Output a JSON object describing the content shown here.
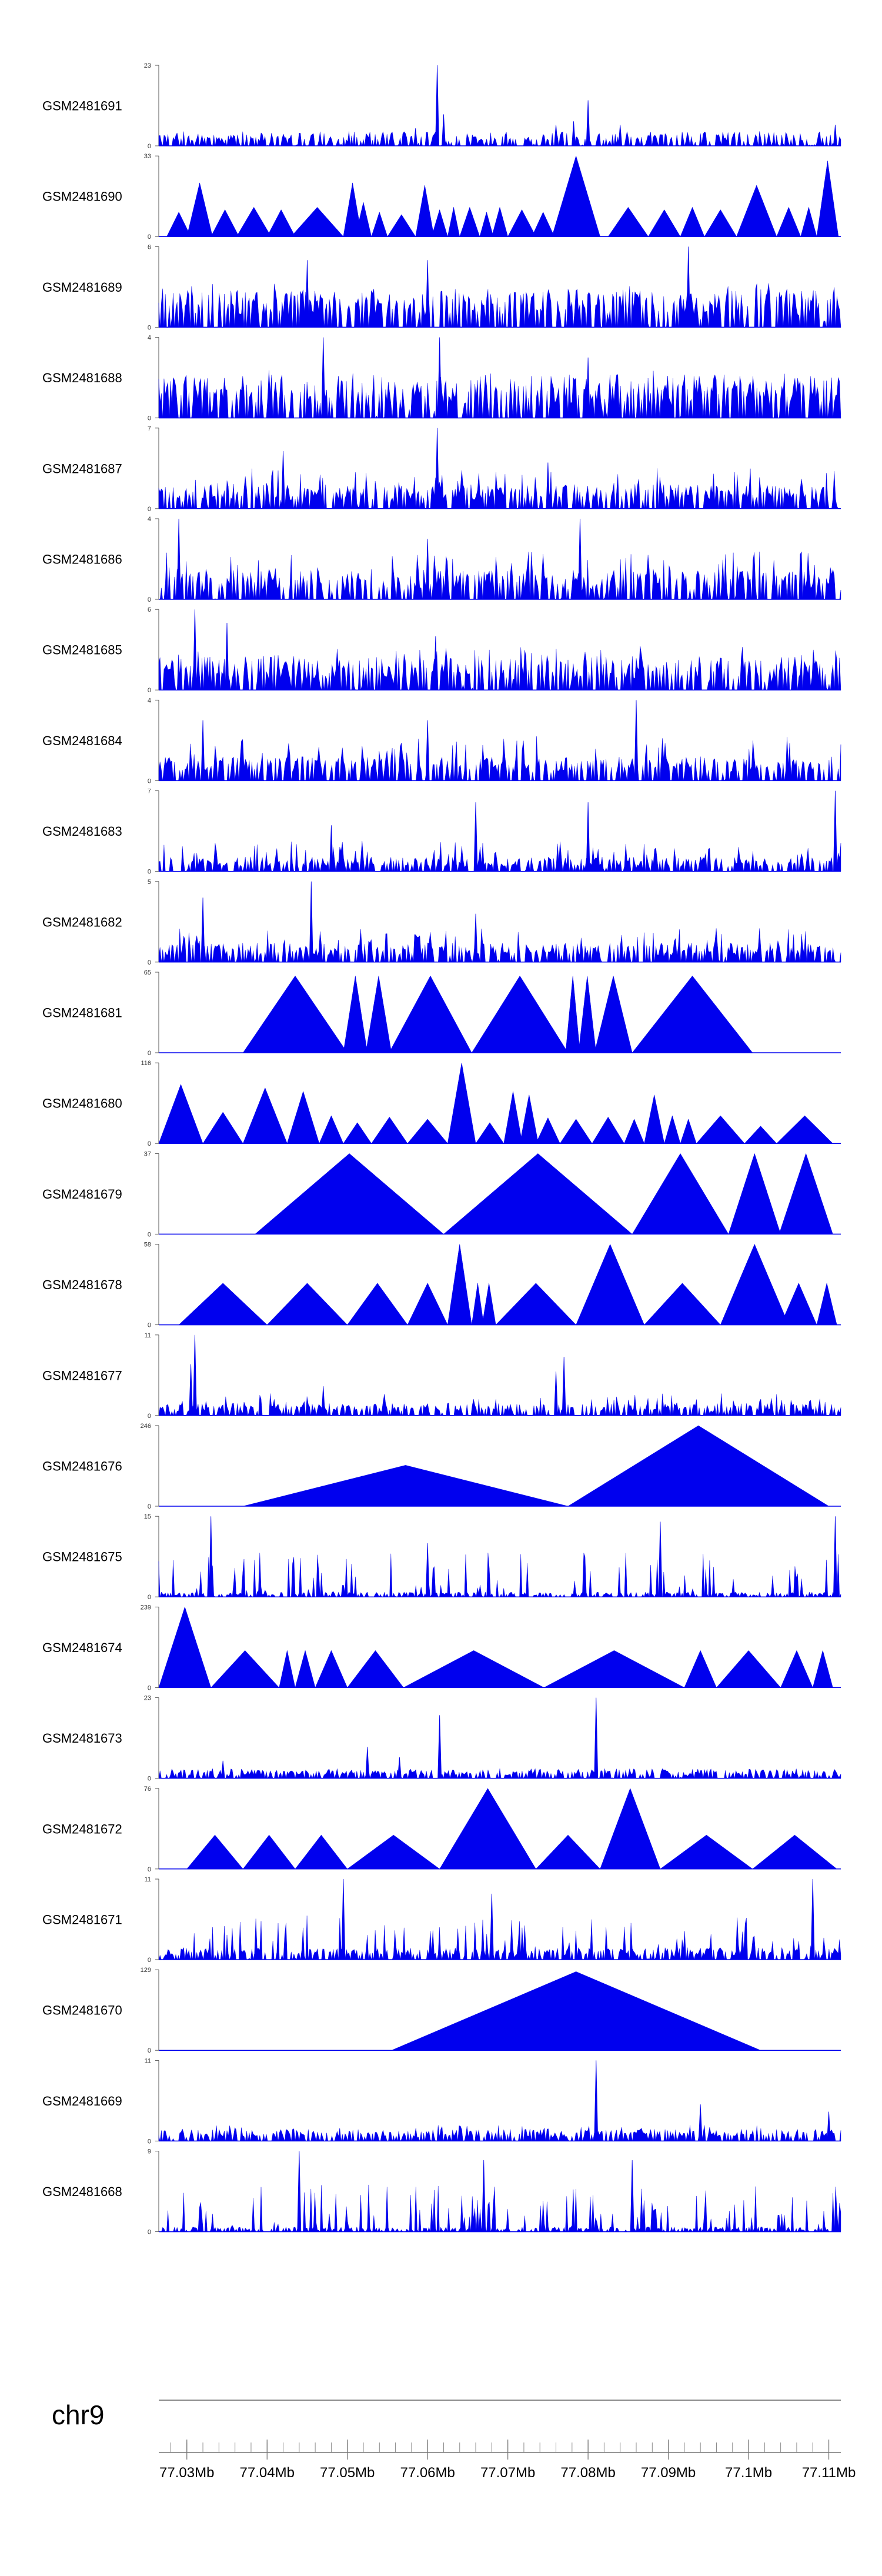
{
  "chart_data": {
    "type": "area",
    "title": "",
    "chromosome": "chr9",
    "fill_color": "#0000ee",
    "axis_color": "#555555",
    "x_range": [
      77026500,
      77111500
    ],
    "x_tick_labels": [
      "77.03Mb",
      "77.04Mb",
      "77.05Mb",
      "77.06Mb",
      "77.07Mb",
      "77.08Mb",
      "77.09Mb",
      "77.1Mb",
      "77.11Mb"
    ],
    "x_tick_positions": [
      77030000,
      77040000,
      77050000,
      77060000,
      77070000,
      77080000,
      77090000,
      77100000,
      77110000
    ],
    "minor_tick_step": 2000,
    "tracks": [
      {
        "name": "GSM2481691",
        "ymax": "23",
        "ymin": "0",
        "ymax_value": 23,
        "style": "dense",
        "seed": 11,
        "baseline": 0.06,
        "height_scale": 0.09,
        "peaks": [
          [
            77061200,
            23
          ],
          [
            77062000,
            9
          ],
          [
            77076000,
            6
          ],
          [
            77078200,
            7
          ],
          [
            77080000,
            13
          ],
          [
            77084000,
            6
          ],
          [
            77110800,
            6
          ],
          [
            77058500,
            5
          ]
        ]
      },
      {
        "name": "GSM2481690",
        "ymax": "33",
        "ymin": "0",
        "ymax_value": 33,
        "style": "triangles",
        "segments": [
          [
            77027500,
            77030500,
            10
          ],
          [
            77030000,
            77033200,
            22
          ],
          [
            77033000,
            77036500,
            11
          ],
          [
            77036200,
            77040500,
            12
          ],
          [
            77040000,
            77043500,
            11
          ],
          [
            77043000,
            77049500,
            12
          ],
          [
            77049500,
            77051800,
            22
          ],
          [
            77051000,
            77053000,
            14
          ],
          [
            77053000,
            77055000,
            10
          ],
          [
            77055000,
            77058500,
            9
          ],
          [
            77058500,
            77060800,
            21
          ],
          [
            77060500,
            77062500,
            11
          ],
          [
            77062500,
            77064000,
            12
          ],
          [
            77064000,
            77066500,
            12
          ],
          [
            77066500,
            77068200,
            10
          ],
          [
            77068000,
            77070000,
            12
          ],
          [
            77070000,
            77073500,
            11
          ],
          [
            77073000,
            77075800,
            10
          ],
          [
            77075500,
            77081500,
            33
          ],
          [
            77082500,
            77087500,
            12
          ],
          [
            77087500,
            77091500,
            11
          ],
          [
            77091500,
            77094500,
            12
          ],
          [
            77094500,
            77098500,
            11
          ],
          [
            77098500,
            77103500,
            21
          ],
          [
            77103500,
            77106500,
            12
          ],
          [
            77106500,
            77108500,
            12
          ],
          [
            77108500,
            77111200,
            31
          ]
        ]
      },
      {
        "name": "GSM2481689",
        "ymax": "6",
        "ymin": "0",
        "ymax_value": 6,
        "style": "dense",
        "seed": 21,
        "baseline": 0.16,
        "height_scale": 0.55,
        "peaks": [
          [
            77092500,
            6
          ],
          [
            77060000,
            5
          ],
          [
            77045000,
            5
          ]
        ]
      },
      {
        "name": "GSM2481688",
        "ymax": "4",
        "ymin": "0",
        "ymax_value": 4,
        "style": "dense",
        "seed": 31,
        "baseline": 0.18,
        "height_scale": 0.6,
        "peaks": [
          [
            77047000,
            4
          ],
          [
            77061500,
            4
          ],
          [
            77080000,
            3
          ]
        ]
      },
      {
        "name": "GSM2481687",
        "ymax": "7",
        "ymin": "0",
        "ymax_value": 7,
        "style": "dense",
        "seed": 41,
        "baseline": 0.1,
        "height_scale": 0.5,
        "peaks": [
          [
            77061200,
            7
          ],
          [
            77042000,
            5
          ],
          [
            77075000,
            4
          ]
        ]
      },
      {
        "name": "GSM2481686",
        "ymax": "4",
        "ymin": "0",
        "ymax_value": 4,
        "style": "dense",
        "seed": 51,
        "baseline": 0.12,
        "height_scale": 0.6,
        "peaks": [
          [
            77029000,
            4
          ],
          [
            77060000,
            3
          ],
          [
            77079000,
            4
          ]
        ]
      },
      {
        "name": "GSM2481685",
        "ymax": "6",
        "ymin": "0",
        "ymax_value": 6,
        "style": "dense",
        "seed": 61,
        "baseline": 0.14,
        "height_scale": 0.55,
        "peaks": [
          [
            77031000,
            6
          ],
          [
            77035000,
            5
          ],
          [
            77061000,
            4
          ]
        ]
      },
      {
        "name": "GSM2481684",
        "ymax": "4",
        "ymin": "0",
        "ymax_value": 4,
        "style": "dense",
        "seed": 71,
        "baseline": 0.1,
        "height_scale": 0.55,
        "peaks": [
          [
            77086000,
            4
          ],
          [
            77032000,
            3
          ],
          [
            77060000,
            3
          ]
        ]
      },
      {
        "name": "GSM2481683",
        "ymax": "7",
        "ymin": "0",
        "ymax_value": 7,
        "style": "dense",
        "seed": 81,
        "baseline": 0.06,
        "height_scale": 0.38,
        "peaks": [
          [
            77110800,
            7
          ],
          [
            77080000,
            6
          ],
          [
            77066000,
            6
          ],
          [
            77048000,
            4
          ]
        ]
      },
      {
        "name": "GSM2481682",
        "ymax": "5",
        "ymin": "0",
        "ymax_value": 5,
        "style": "dense",
        "seed": 91,
        "baseline": 0.08,
        "height_scale": 0.42,
        "peaks": [
          [
            77045500,
            5
          ],
          [
            77032000,
            4
          ],
          [
            77066000,
            3
          ]
        ]
      },
      {
        "name": "GSM2481681",
        "ymax": "65",
        "ymin": "0",
        "ymax_value": 65,
        "style": "triangles",
        "segments": [
          [
            77037000,
            77050000,
            62
          ],
          [
            77049500,
            77052500,
            62
          ],
          [
            77052300,
            77055500,
            62
          ],
          [
            77055200,
            77065500,
            62
          ],
          [
            77065500,
            77077500,
            62
          ],
          [
            77077200,
            77079000,
            62
          ],
          [
            77078800,
            77081000,
            62
          ],
          [
            77080800,
            77085500,
            62
          ],
          [
            77085500,
            77100500,
            62
          ]
        ]
      },
      {
        "name": "GSM2481680",
        "ymax": "116",
        "ymin": "0",
        "ymax_value": 116,
        "style": "triangles",
        "segments": [
          [
            77026500,
            77032000,
            85
          ],
          [
            77032000,
            77037000,
            45
          ],
          [
            77037000,
            77042500,
            80
          ],
          [
            77042500,
            77046500,
            75
          ],
          [
            77046500,
            77049500,
            40
          ],
          [
            77049500,
            77053000,
            30
          ],
          [
            77053000,
            77057500,
            38
          ],
          [
            77057500,
            77062500,
            35
          ],
          [
            77062500,
            77066000,
            116
          ],
          [
            77066000,
            77069500,
            30
          ],
          [
            77069500,
            77071800,
            75
          ],
          [
            77071500,
            77073800,
            70
          ],
          [
            77073500,
            77076500,
            37
          ],
          [
            77076500,
            77080500,
            35
          ],
          [
            77080500,
            77084500,
            38
          ],
          [
            77084500,
            77087000,
            35
          ],
          [
            77087000,
            77089500,
            70
          ],
          [
            77089500,
            77091500,
            40
          ],
          [
            77091500,
            77093500,
            35
          ],
          [
            77093500,
            77099500,
            40
          ],
          [
            77099500,
            77103500,
            25
          ],
          [
            77103500,
            77110500,
            40
          ]
        ]
      },
      {
        "name": "GSM2481679",
        "ymax": "37",
        "ymin": "0",
        "ymax_value": 37,
        "style": "triangles",
        "segments": [
          [
            77038500,
            77062000,
            37
          ],
          [
            77062000,
            77085500,
            37
          ],
          [
            77085500,
            77097500,
            37
          ],
          [
            77097500,
            77104000,
            37
          ],
          [
            77103800,
            77110500,
            37
          ]
        ]
      },
      {
        "name": "GSM2481678",
        "ymax": "58",
        "ymin": "0",
        "ymax_value": 58,
        "style": "triangles",
        "segments": [
          [
            77029000,
            77040000,
            30
          ],
          [
            77040000,
            77050000,
            30
          ],
          [
            77050000,
            77057500,
            30
          ],
          [
            77057500,
            77062500,
            30
          ],
          [
            77062500,
            77065500,
            58
          ],
          [
            77065500,
            77067000,
            30
          ],
          [
            77066800,
            77068500,
            30
          ],
          [
            77068500,
            77078500,
            30
          ],
          [
            77078500,
            77087000,
            58
          ],
          [
            77087000,
            77096500,
            30
          ],
          [
            77096500,
            77105000,
            58
          ],
          [
            77104000,
            77108500,
            30
          ],
          [
            77108500,
            77111000,
            30
          ]
        ]
      },
      {
        "name": "GSM2481677",
        "ymax": "11",
        "ymin": "0",
        "ymax_value": 11,
        "style": "dense",
        "seed": 101,
        "baseline": 0.05,
        "height_scale": 0.28,
        "peaks": [
          [
            77031000,
            11
          ],
          [
            77077000,
            8
          ],
          [
            77076000,
            6
          ],
          [
            77030500,
            7
          ],
          [
            77047000,
            4
          ]
        ]
      },
      {
        "name": "GSM2481676",
        "ymax": "246",
        "ymin": "0",
        "ymax_value": 246,
        "style": "triangles",
        "segments": [
          [
            77037000,
            77077500,
            125
          ],
          [
            77077500,
            77110000,
            246
          ]
        ]
      },
      {
        "name": "GSM2481675",
        "ymax": "15",
        "ymin": "0",
        "ymax_value": 15,
        "style": "dense",
        "seed": 111,
        "baseline": 0.02,
        "height_scale": 0.55,
        "peaks": [
          [
            77033000,
            15
          ],
          [
            77089000,
            14
          ],
          [
            77110800,
            15
          ],
          [
            77060000,
            10
          ]
        ]
      },
      {
        "name": "GSM2481674",
        "ymax": "239",
        "ymin": "0",
        "ymax_value": 239,
        "style": "triangles",
        "segments": [
          [
            77026500,
            77033000,
            239
          ],
          [
            77033000,
            77041500,
            110
          ],
          [
            77041500,
            77043500,
            110
          ],
          [
            77043500,
            77046000,
            110
          ],
          [
            77046000,
            77050000,
            110
          ],
          [
            77050000,
            77057000,
            110
          ],
          [
            77057000,
            77074500,
            110
          ],
          [
            77074500,
            77092000,
            110
          ],
          [
            77092000,
            77096000,
            110
          ],
          [
            77096000,
            77104000,
            110
          ],
          [
            77104000,
            77108000,
            110
          ],
          [
            77108000,
            77110500,
            110
          ]
        ]
      },
      {
        "name": "GSM2481673",
        "ymax": "23",
        "ymin": "0",
        "ymax_value": 23,
        "style": "dense",
        "seed": 121,
        "baseline": 0.04,
        "height_scale": 0.12,
        "peaks": [
          [
            77081000,
            23
          ],
          [
            77061500,
            18
          ],
          [
            77052500,
            9
          ],
          [
            77056500,
            6
          ],
          [
            77034500,
            5
          ]
        ]
      },
      {
        "name": "GSM2481672",
        "ymax": "76",
        "ymin": "0",
        "ymax_value": 76,
        "style": "triangles",
        "segments": [
          [
            77030000,
            77037000,
            32
          ],
          [
            77037000,
            77043500,
            32
          ],
          [
            77043500,
            77050000,
            32
          ],
          [
            77050000,
            77061500,
            32
          ],
          [
            77061500,
            77073500,
            76
          ],
          [
            77073500,
            77081500,
            32
          ],
          [
            77081500,
            77089000,
            76
          ],
          [
            77089000,
            77100500,
            32
          ],
          [
            77100500,
            77111000,
            32
          ]
        ]
      },
      {
        "name": "GSM2481671",
        "ymax": "11",
        "ymin": "0",
        "ymax_value": 11,
        "style": "dense",
        "seed": 131,
        "baseline": 0.05,
        "height_scale": 0.55,
        "peaks": [
          [
            77049500,
            11
          ],
          [
            77108000,
            11
          ],
          [
            77068000,
            9
          ]
        ]
      },
      {
        "name": "GSM2481670",
        "ymax": "129",
        "ymin": "0",
        "ymax_value": 129,
        "style": "triangles",
        "segments": [
          [
            77055500,
            77101500,
            126
          ]
        ]
      },
      {
        "name": "GSM2481669",
        "ymax": "11",
        "ymin": "0",
        "ymax_value": 11,
        "style": "dense",
        "seed": 141,
        "baseline": 0.05,
        "height_scale": 0.2,
        "peaks": [
          [
            77081000,
            11
          ],
          [
            77094000,
            5
          ],
          [
            77110000,
            4
          ]
        ]
      },
      {
        "name": "GSM2481668",
        "ymax": "9",
        "ymin": "0",
        "ymax_value": 9,
        "style": "dense",
        "seed": 151,
        "baseline": 0.02,
        "height_scale": 0.6,
        "peaks": [
          [
            77044000,
            9
          ],
          [
            77067000,
            8
          ],
          [
            77085500,
            8
          ]
        ]
      }
    ]
  }
}
